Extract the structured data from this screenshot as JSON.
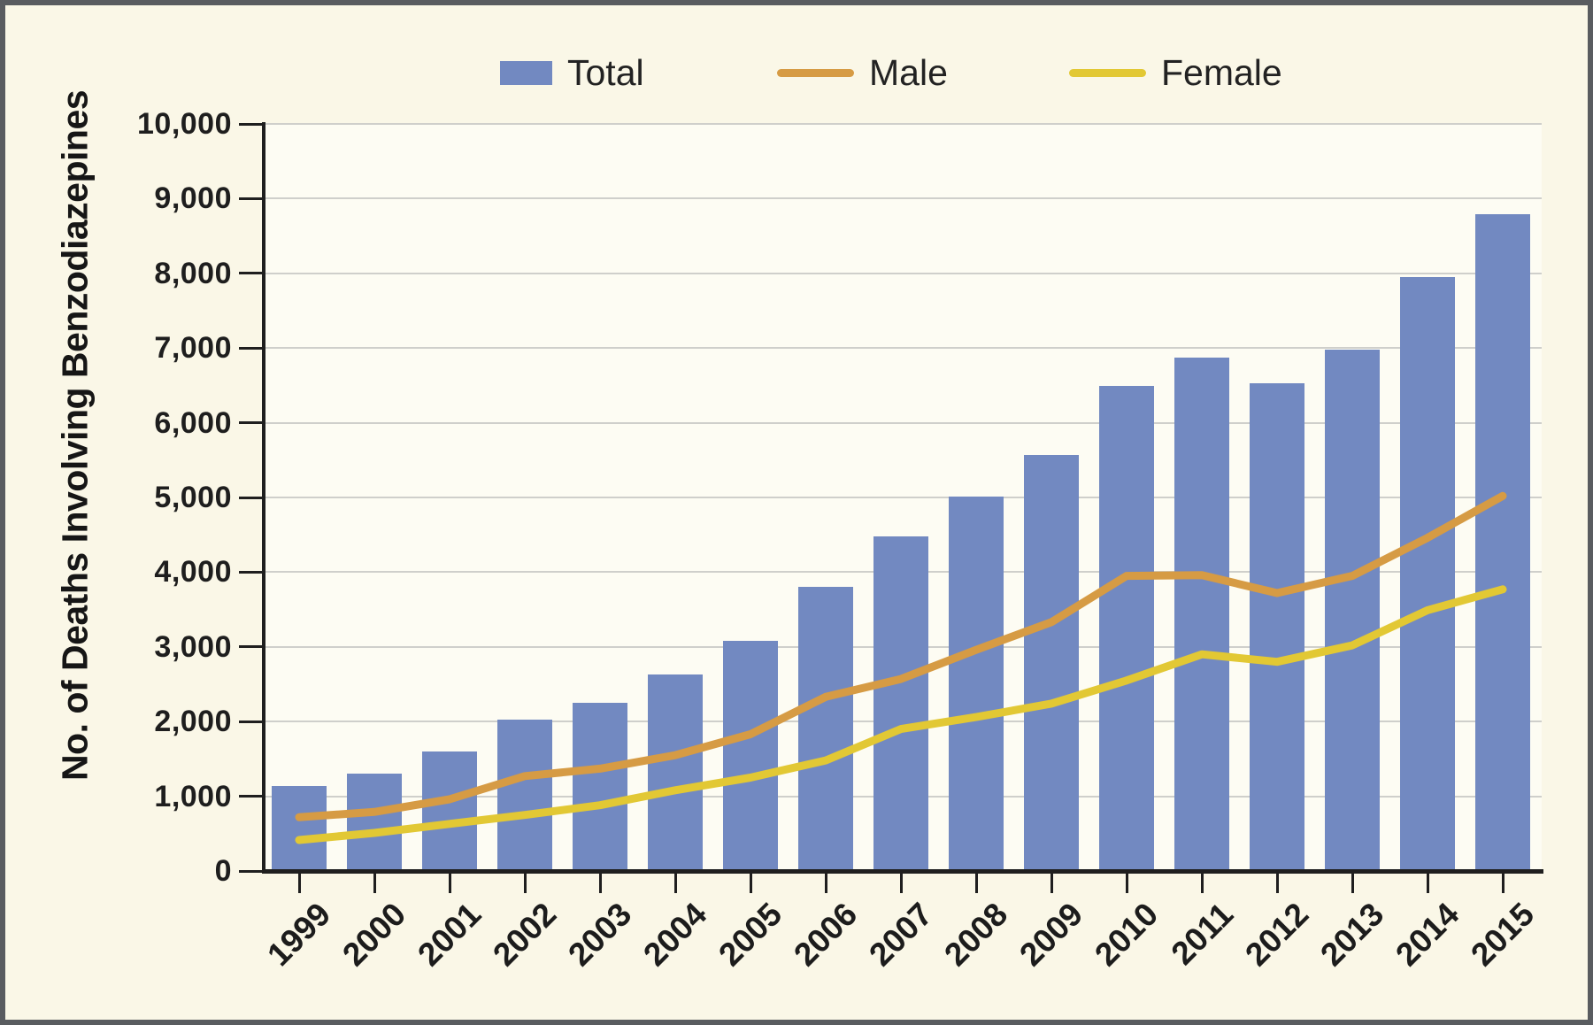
{
  "figure": {
    "background_color": "#FAF7E7",
    "plot_background_color": "#FDFCF3",
    "frame_border_color": "#595C60",
    "gridline_color": "#CFCFCB",
    "axis_color": "#1F1F1F",
    "text_color": "#1E1E1E"
  },
  "legend": {
    "position": "top-center",
    "items": [
      {
        "label": "Total",
        "swatch": "box",
        "color": "#7289C1"
      },
      {
        "label": "Male",
        "swatch": "line",
        "color": "#D69B44"
      },
      {
        "label": "Female",
        "swatch": "line",
        "color": "#E2C834"
      }
    ]
  },
  "chart_data": {
    "type": "combo",
    "title": "",
    "xlabel": "",
    "ylabel": "No. of Deaths Involving Benzodiazepines",
    "categories": [
      "1999",
      "2000",
      "2001",
      "2002",
      "2003",
      "2004",
      "2005",
      "2006",
      "2007",
      "2008",
      "2009",
      "2010",
      "2011",
      "2012",
      "2013",
      "2014",
      "2015"
    ],
    "bar_series": {
      "name": "Total",
      "color": "#7289C1",
      "values": [
        1135,
        1298,
        1594,
        2022,
        2248,
        2627,
        3084,
        3805,
        4475,
        5017,
        5567,
        6497,
        6872,
        6524,
        6973,
        7945,
        8791
      ]
    },
    "line_series": [
      {
        "name": "Male",
        "color": "#D69B44",
        "values": [
          720,
          790,
          960,
          1270,
          1370,
          1550,
          1830,
          2330,
          2570,
          2960,
          3330,
          3950,
          3960,
          3720,
          3950,
          4460,
          5020
        ]
      },
      {
        "name": "Female",
        "color": "#E2C834",
        "values": [
          415,
          510,
          630,
          750,
          880,
          1080,
          1250,
          1480,
          1900,
          2060,
          2240,
          2550,
          2900,
          2800,
          3020,
          3490,
          3770
        ]
      }
    ],
    "ylim": [
      0,
      10000
    ],
    "ytick_step": 1000,
    "ytick_labels": [
      "0",
      "1,000",
      "2,000",
      "3,000",
      "4,000",
      "5,000",
      "6,000",
      "7,000",
      "8,000",
      "9,000",
      "10,000"
    ],
    "grid": true,
    "x_tick_label_rotation_deg": -45,
    "legend_position": "top-center"
  }
}
